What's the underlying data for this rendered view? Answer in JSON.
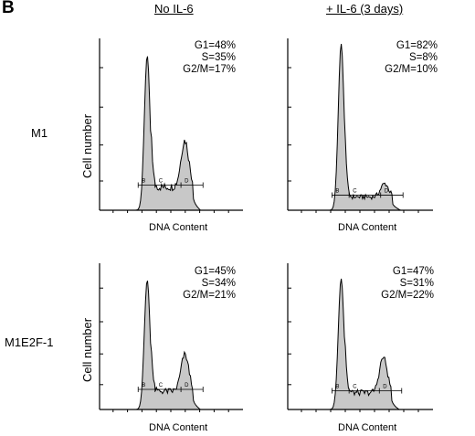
{
  "figure": {
    "panel_letter": "B",
    "col_headers": [
      "No IL-6",
      "+ IL-6 (3 days)"
    ],
    "row_labels": [
      "M1",
      "M1E2F-1"
    ],
    "ylabel": "Cell number",
    "xlabel": "DNA Content"
  },
  "colors": {
    "fill": "#c8c8c8",
    "line": "#000000",
    "background": "#ffffff"
  },
  "chart_data": [
    {
      "type": "area",
      "row": "M1",
      "condition": "No IL-6",
      "xlabel": "DNA Content",
      "ylabel": "Cell number",
      "stats": [
        "G1=48%",
        "S=35%",
        "G2/M=17%"
      ],
      "gate_labels": [
        "B",
        "C",
        "D"
      ],
      "g1_peak": {
        "x": 0.29,
        "height": 0.93
      },
      "g2_peak": {
        "x": 0.58,
        "height": 0.28
      },
      "s_level": 0.14
    },
    {
      "type": "area",
      "row": "M1",
      "condition": "+ IL-6 (3 days)",
      "xlabel": "DNA Content",
      "ylabel": "Cell number",
      "stats": [
        "G1=82%",
        "S=8%",
        "G2/M=10%"
      ],
      "gate_labels": [
        "B",
        "C",
        "D"
      ],
      "g1_peak": {
        "x": 0.33,
        "height": 1.0
      },
      "g2_peak": {
        "x": 0.66,
        "height": 0.08
      },
      "s_level": 0.08
    },
    {
      "type": "area",
      "row": "M1E2F-1",
      "condition": "No IL-6",
      "xlabel": "DNA Content",
      "ylabel": "Cell number",
      "stats": [
        "G1=45%",
        "S=34%",
        "G2/M=21%"
      ],
      "gate_labels": [
        "B",
        "C",
        "D"
      ],
      "g1_peak": {
        "x": 0.29,
        "height": 0.92
      },
      "g2_peak": {
        "x": 0.58,
        "height": 0.26
      },
      "s_level": 0.13
    },
    {
      "type": "area",
      "row": "M1E2F-1",
      "condition": "+ IL-6 (3 days)",
      "xlabel": "DNA Content",
      "ylabel": "Cell number",
      "stats": [
        "G1=47%",
        "S=31%",
        "G2/M=22%"
      ],
      "gate_labels": [
        "B",
        "C",
        "D"
      ],
      "g1_peak": {
        "x": 0.33,
        "height": 0.93
      },
      "g2_peak": {
        "x": 0.65,
        "height": 0.25
      },
      "s_level": 0.12
    }
  ]
}
